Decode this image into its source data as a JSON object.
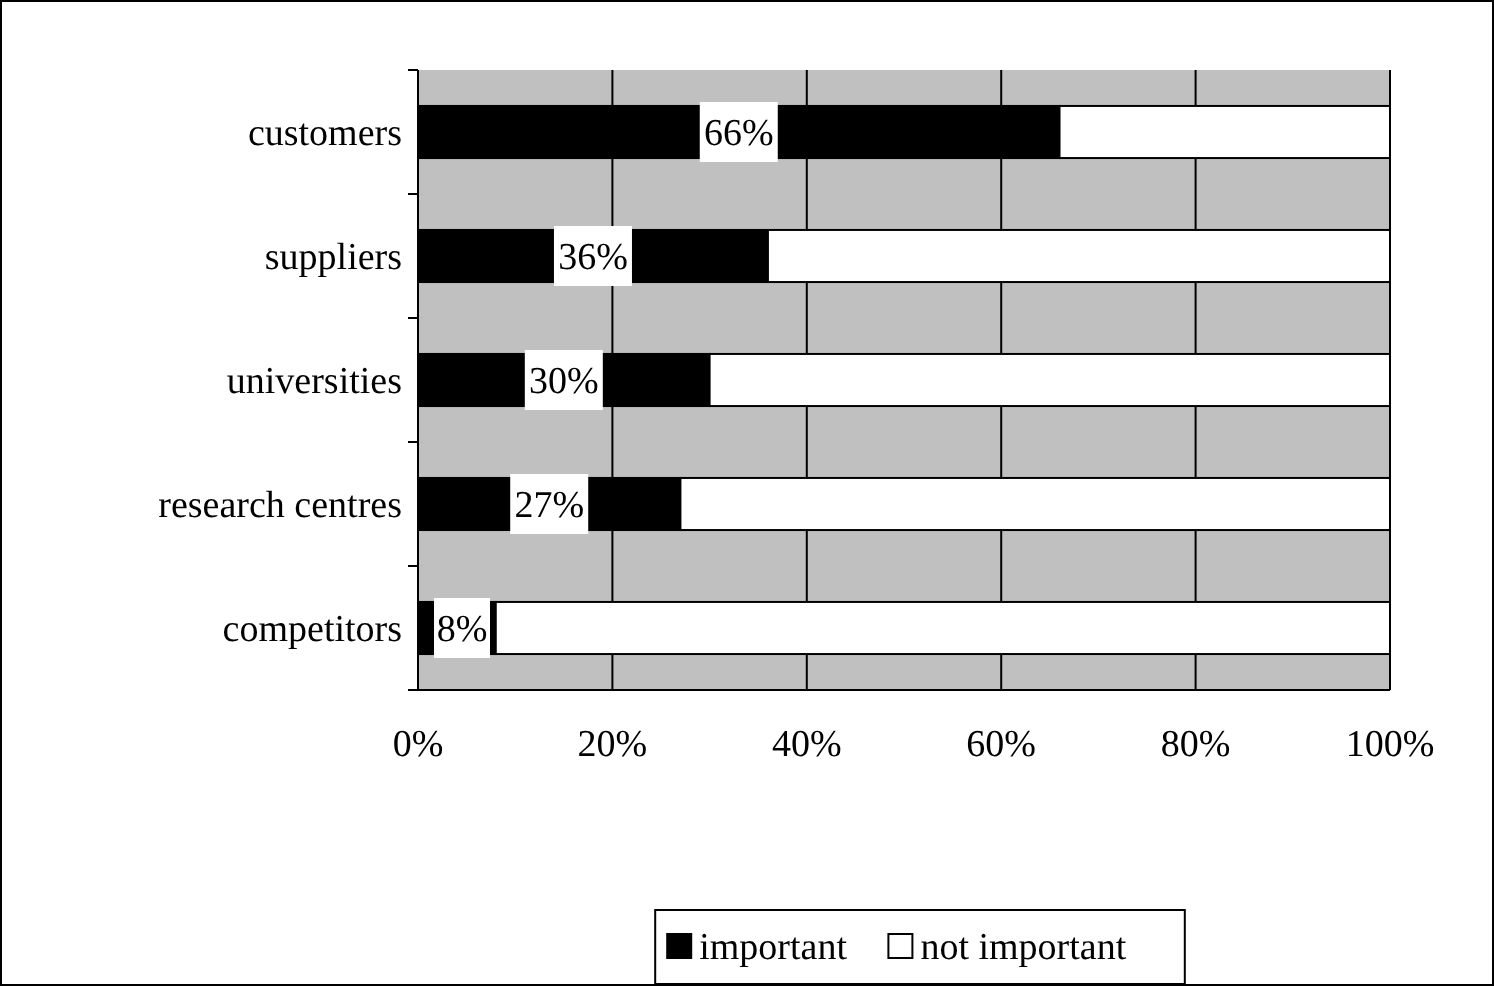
{
  "chart_data": {
    "type": "bar",
    "orientation": "horizontal",
    "stacked": true,
    "categories": [
      "customers",
      "suppliers",
      "universities",
      "research centres",
      "competitors"
    ],
    "series": [
      {
        "name": "important",
        "color": "#000000",
        "values": [
          66,
          36,
          30,
          27,
          8
        ],
        "value_labels": [
          "66%",
          "36%",
          "30%",
          "27%",
          "8%"
        ]
      },
      {
        "name": "not important",
        "color": "#ffffff",
        "values": [
          34,
          64,
          70,
          73,
          92
        ]
      }
    ],
    "xlim": [
      0,
      100
    ],
    "xticks": [
      {
        "value": 0,
        "label": "0%"
      },
      {
        "value": 20,
        "label": "20%"
      },
      {
        "value": 40,
        "label": "40%"
      },
      {
        "value": 60,
        "label": "60%"
      },
      {
        "value": 80,
        "label": "80%"
      },
      {
        "value": 100,
        "label": "100%"
      }
    ],
    "grid": "x",
    "legend": "bottom"
  }
}
